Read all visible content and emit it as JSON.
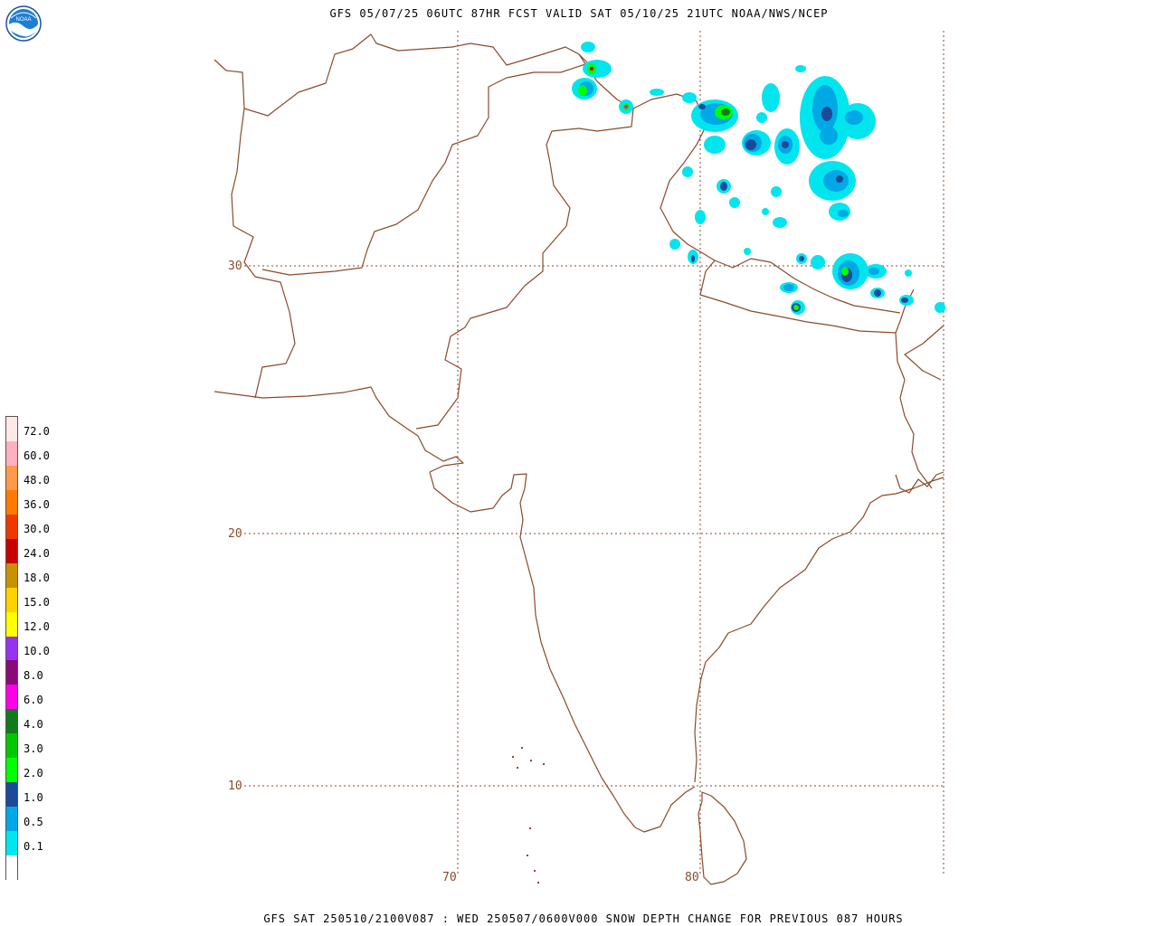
{
  "header": {
    "title": "GFS 05/07/25 06UTC 87HR FCST VALID SAT 05/10/25 21UTC NOAA/NWS/NCEP"
  },
  "footer": {
    "caption": "GFS SAT 250510/2100V087 : WED 250507/0600V000 SNOW DEPTH CHANGE FOR PREVIOUS 087 HOURS"
  },
  "logo": {
    "icon": "noaa-logo-icon",
    "text": "NOAA"
  },
  "map": {
    "latitude_labels": [
      "30",
      "20",
      "10"
    ],
    "longitude_labels": [
      "70",
      "80"
    ],
    "colors": {
      "border": "#8b4a2b",
      "grid": "#8b4a2b"
    }
  },
  "legend": {
    "items": [
      {
        "label": "",
        "color": "#ffffff"
      },
      {
        "label": "0.1",
        "color": "#00e5ee"
      },
      {
        "label": "0.5",
        "color": "#00a8e6"
      },
      {
        "label": "1.0",
        "color": "#1c4a99"
      },
      {
        "label": "2.0",
        "color": "#00ff00"
      },
      {
        "label": "3.0",
        "color": "#00c800"
      },
      {
        "label": "4.0",
        "color": "#117a1b"
      },
      {
        "label": "6.0",
        "color": "#ff00e6"
      },
      {
        "label": "8.0",
        "color": "#8b0a7a"
      },
      {
        "label": "10.0",
        "color": "#9434f0"
      },
      {
        "label": "12.0",
        "color": "#ffff00"
      },
      {
        "label": "15.0",
        "color": "#ffd200"
      },
      {
        "label": "18.0",
        "color": "#c89100"
      },
      {
        "label": "24.0",
        "color": "#c80000"
      },
      {
        "label": "30.0",
        "color": "#ee3800"
      },
      {
        "label": "36.0",
        "color": "#ff7a00"
      },
      {
        "label": "48.0",
        "color": "#ff9a4a"
      },
      {
        "label": "60.0",
        "color": "#ffb0c0"
      },
      {
        "label": "72.0",
        "color": "#ffe8e8"
      }
    ]
  }
}
